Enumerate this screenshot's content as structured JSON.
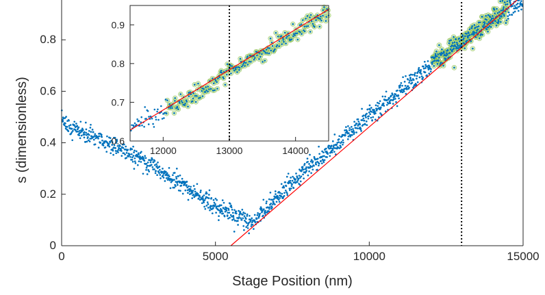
{
  "chart_data": [
    {
      "type": "scatter",
      "role": "main",
      "xlabel": "Stage Position (nm)",
      "ylabel": "s (dimensionless)",
      "xlim": [
        0,
        15000
      ],
      "ylim": [
        0,
        0.96
      ],
      "xticks": [
        "0",
        "5000",
        "10000",
        "15000"
      ],
      "yticks": [
        "0",
        "0.2",
        "0.4",
        "0.6",
        "0.8"
      ],
      "xtick_values": [
        0,
        5000,
        10000,
        15000
      ],
      "ytick_values": [
        0,
        0.2,
        0.4,
        0.6,
        0.8
      ],
      "grid": false,
      "series": [
        {
          "kind": "scatter",
          "color": "#0072BD",
          "profile": [
            [
              0,
              0.475
            ],
            [
              1500,
              0.4
            ],
            [
              3000,
              0.31
            ],
            [
              4000,
              0.23
            ],
            [
              5000,
              0.15
            ],
            [
              5700,
              0.11
            ],
            [
              6200,
              0.09
            ],
            [
              6700,
              0.15
            ],
            [
              7500,
              0.25
            ],
            [
              10000,
              0.5
            ],
            [
              12500,
              0.75
            ],
            [
              15000,
              0.96
            ]
          ],
          "noise": 0.018
        },
        {
          "kind": "line",
          "color": "#FF0000",
          "points": [
            [
              5500,
              0
            ],
            [
              15000,
              0.975
            ]
          ]
        },
        {
          "kind": "highlight",
          "color": "#77AC30",
          "x_range": [
            12050,
            14500
          ]
        }
      ],
      "annotations": [
        {
          "kind": "vline",
          "x": 13000,
          "style": "dotted",
          "color": "#000000"
        }
      ]
    },
    {
      "type": "scatter",
      "role": "inset",
      "xlim": [
        11500,
        14500
      ],
      "ylim": [
        0.6,
        0.95
      ],
      "xticks": [
        "12000",
        "13000",
        "14000"
      ],
      "yticks": [
        "0.6",
        "0.7",
        "0.8",
        "0.9"
      ],
      "xtick_values": [
        12000,
        13000,
        14000
      ],
      "ytick_values": [
        0.6,
        0.7,
        0.8,
        0.9
      ],
      "grid": false,
      "series": [
        {
          "kind": "scatter",
          "color": "#0072BD",
          "profile": [
            [
              11500,
              0.63
            ],
            [
              12500,
              0.72
            ],
            [
              13000,
              0.78
            ],
            [
              14000,
              0.88
            ],
            [
              14500,
              0.935
            ]
          ],
          "noise": 0.012
        },
        {
          "kind": "line",
          "color": "#FF0000",
          "points": [
            [
              11500,
              0.628
            ],
            [
              14500,
              0.94
            ]
          ]
        },
        {
          "kind": "highlight",
          "color": "#77AC30",
          "x_range": [
            12050,
            14500
          ]
        }
      ],
      "annotations": [
        {
          "kind": "vline",
          "x": 13000,
          "style": "dotted",
          "color": "#000000"
        }
      ]
    }
  ]
}
